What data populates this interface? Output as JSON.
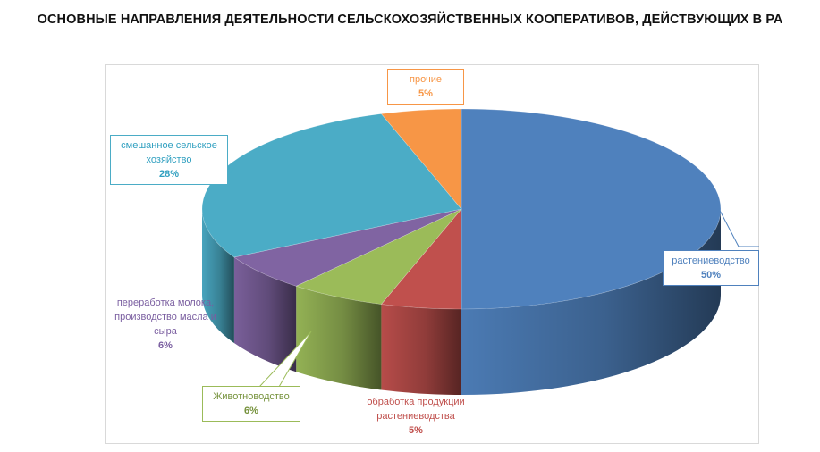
{
  "chart_data": {
    "type": "pie",
    "title": "ОСНОВНЫЕ НАПРАВЛЕНИЯ ДЕЯТЕЛЬНОСТИ СЕЛЬСКОХОЗЯЙСТВЕННЫХ КООПЕРАТИВОВ, ДЕЙСТВУЮЩИХ В РА",
    "slices": [
      {
        "label": "растениеводство",
        "value": 50,
        "value_label": "50%",
        "color": "#4f81bd"
      },
      {
        "label": "обработка продукции растениеводства",
        "value": 5,
        "value_label": "5%",
        "color": "#c0504d"
      },
      {
        "label": "Животноводство",
        "value": 6,
        "value_label": "6%",
        "color": "#9bbb59"
      },
      {
        "label": "переработка молока, производство масла и сыра",
        "value": 6,
        "value_label": "6%",
        "color": "#8064a2"
      },
      {
        "label": "смешанное сельское хозяйство",
        "value": 28,
        "value_label": "28%",
        "color": "#4bacc6"
      },
      {
        "label": "прочие",
        "value": 5,
        "value_label": "5%",
        "color": "#f79646"
      }
    ],
    "legend": "none",
    "style": "3d"
  }
}
